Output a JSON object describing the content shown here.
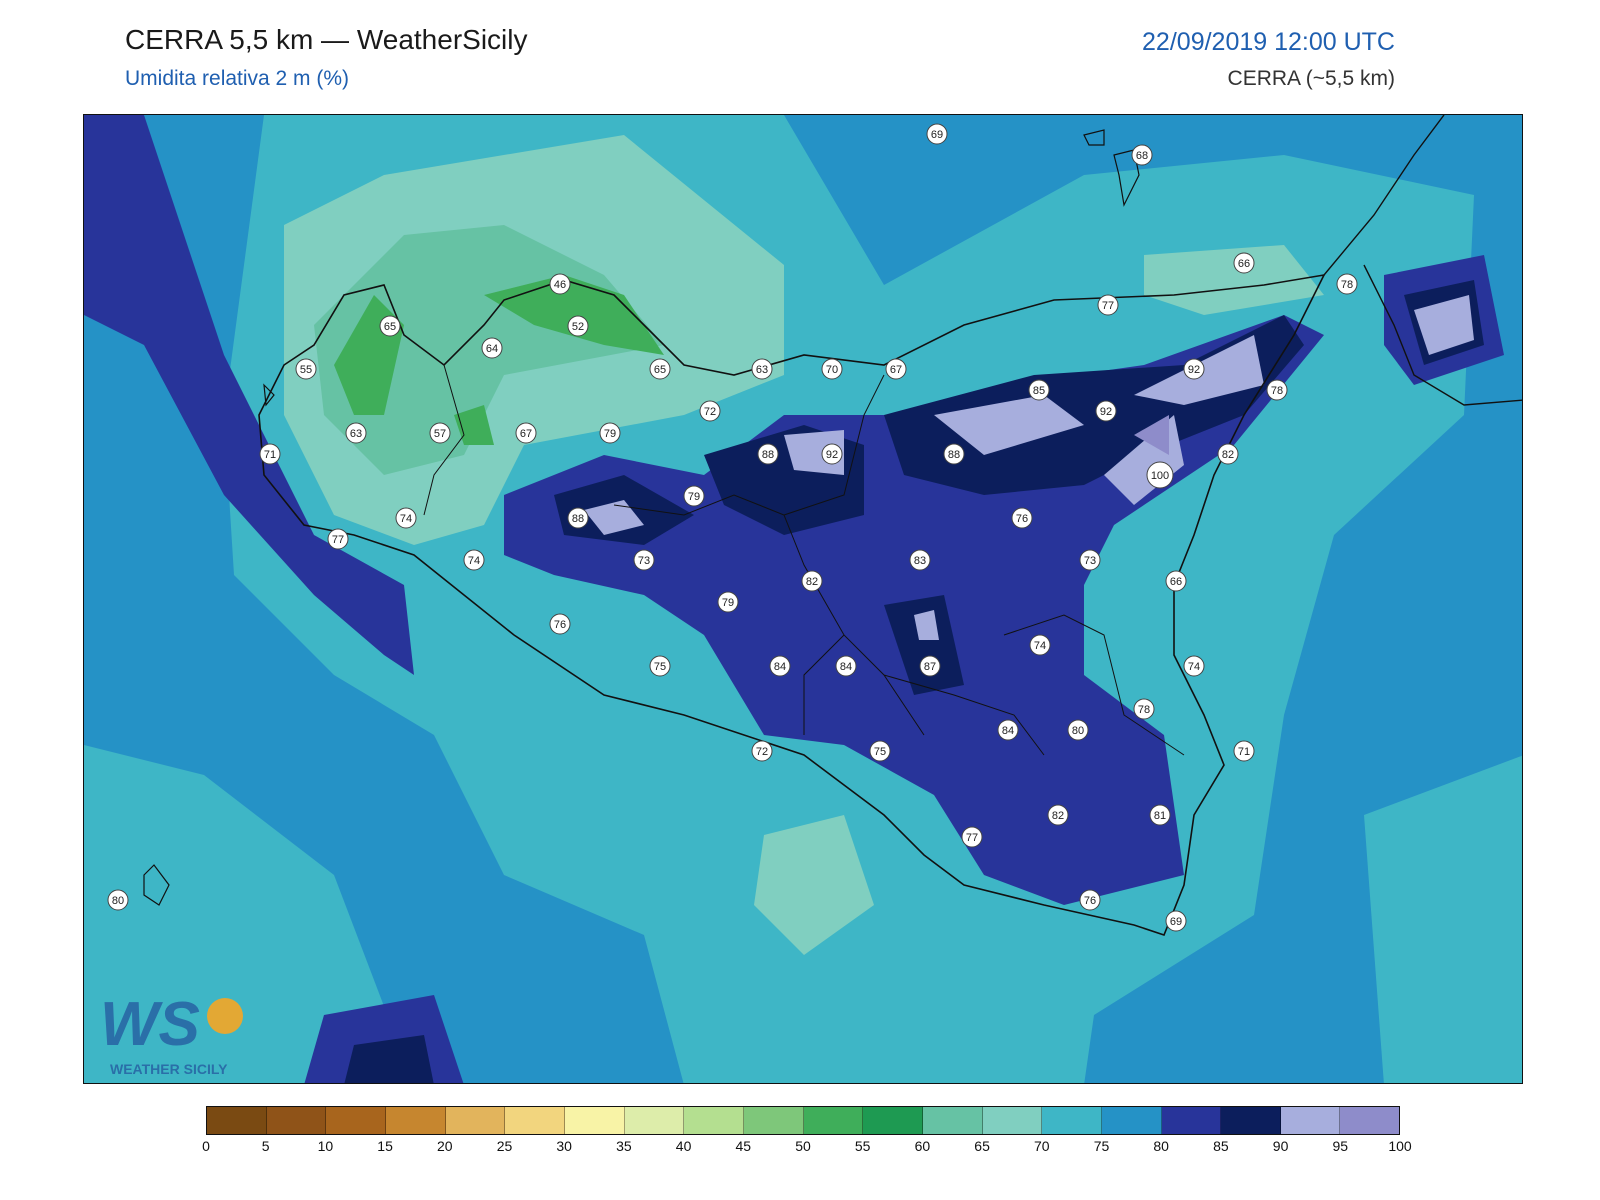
{
  "header": {
    "title": "CERRA 5,5 km — WeatherSicily",
    "subtitle": "Umidita relativa 2 m (%)",
    "datetime": "22/09/2019 12:00 UTC",
    "model": "CERRA (~5,5 km)"
  },
  "colorbar": {
    "ticks": [
      "0",
      "5",
      "10",
      "15",
      "20",
      "25",
      "30",
      "35",
      "40",
      "45",
      "50",
      "55",
      "60",
      "65",
      "70",
      "75",
      "80",
      "85",
      "90",
      "95",
      "100"
    ],
    "colors": [
      "#7a4a12",
      "#8f5318",
      "#a8651d",
      "#c6862f",
      "#e2b45c",
      "#f2d57e",
      "#f8f3a6",
      "#ddedaa",
      "#b4df90",
      "#7ec77a",
      "#3fae5a",
      "#1e9a52",
      "#66c2a4",
      "#80cfc0",
      "#3eb6c6",
      "#2592c6",
      "#28349a",
      "#0c1e5c",
      "#a7aedd",
      "#8e8cca"
    ]
  },
  "logo": {
    "text": "WEATHER SICILY",
    "initials": "WS"
  },
  "stations": [
    {
      "value": "69"
    },
    {
      "value": "68"
    },
    {
      "value": "66"
    },
    {
      "value": "78"
    },
    {
      "value": "77"
    },
    {
      "value": "46"
    },
    {
      "value": "52"
    },
    {
      "value": "65"
    },
    {
      "value": "64"
    },
    {
      "value": "55"
    },
    {
      "value": "65"
    },
    {
      "value": "63"
    },
    {
      "value": "70"
    },
    {
      "value": "67"
    },
    {
      "value": "85"
    },
    {
      "value": "92"
    },
    {
      "value": "92"
    },
    {
      "value": "78"
    },
    {
      "value": "72"
    },
    {
      "value": "63"
    },
    {
      "value": "57"
    },
    {
      "value": "67"
    },
    {
      "value": "79"
    },
    {
      "value": "92"
    },
    {
      "value": "88"
    },
    {
      "value": "100"
    },
    {
      "value": "82"
    },
    {
      "value": "71"
    },
    {
      "value": "88"
    },
    {
      "value": "79"
    },
    {
      "value": "88"
    },
    {
      "value": "76"
    },
    {
      "value": "74"
    },
    {
      "value": "77"
    },
    {
      "value": "74"
    },
    {
      "value": "73"
    },
    {
      "value": "83"
    },
    {
      "value": "73"
    },
    {
      "value": "66"
    },
    {
      "value": "82"
    },
    {
      "value": "79"
    },
    {
      "value": "76"
    },
    {
      "value": "74"
    },
    {
      "value": "75"
    },
    {
      "value": "84"
    },
    {
      "value": "84"
    },
    {
      "value": "87"
    },
    {
      "value": "74"
    },
    {
      "value": "78"
    },
    {
      "value": "84"
    },
    {
      "value": "80"
    },
    {
      "value": "71"
    },
    {
      "value": "72"
    },
    {
      "value": "75"
    },
    {
      "value": "82"
    },
    {
      "value": "81"
    },
    {
      "value": "77"
    },
    {
      "value": "76"
    },
    {
      "value": "69"
    },
    {
      "value": "80"
    }
  ]
}
